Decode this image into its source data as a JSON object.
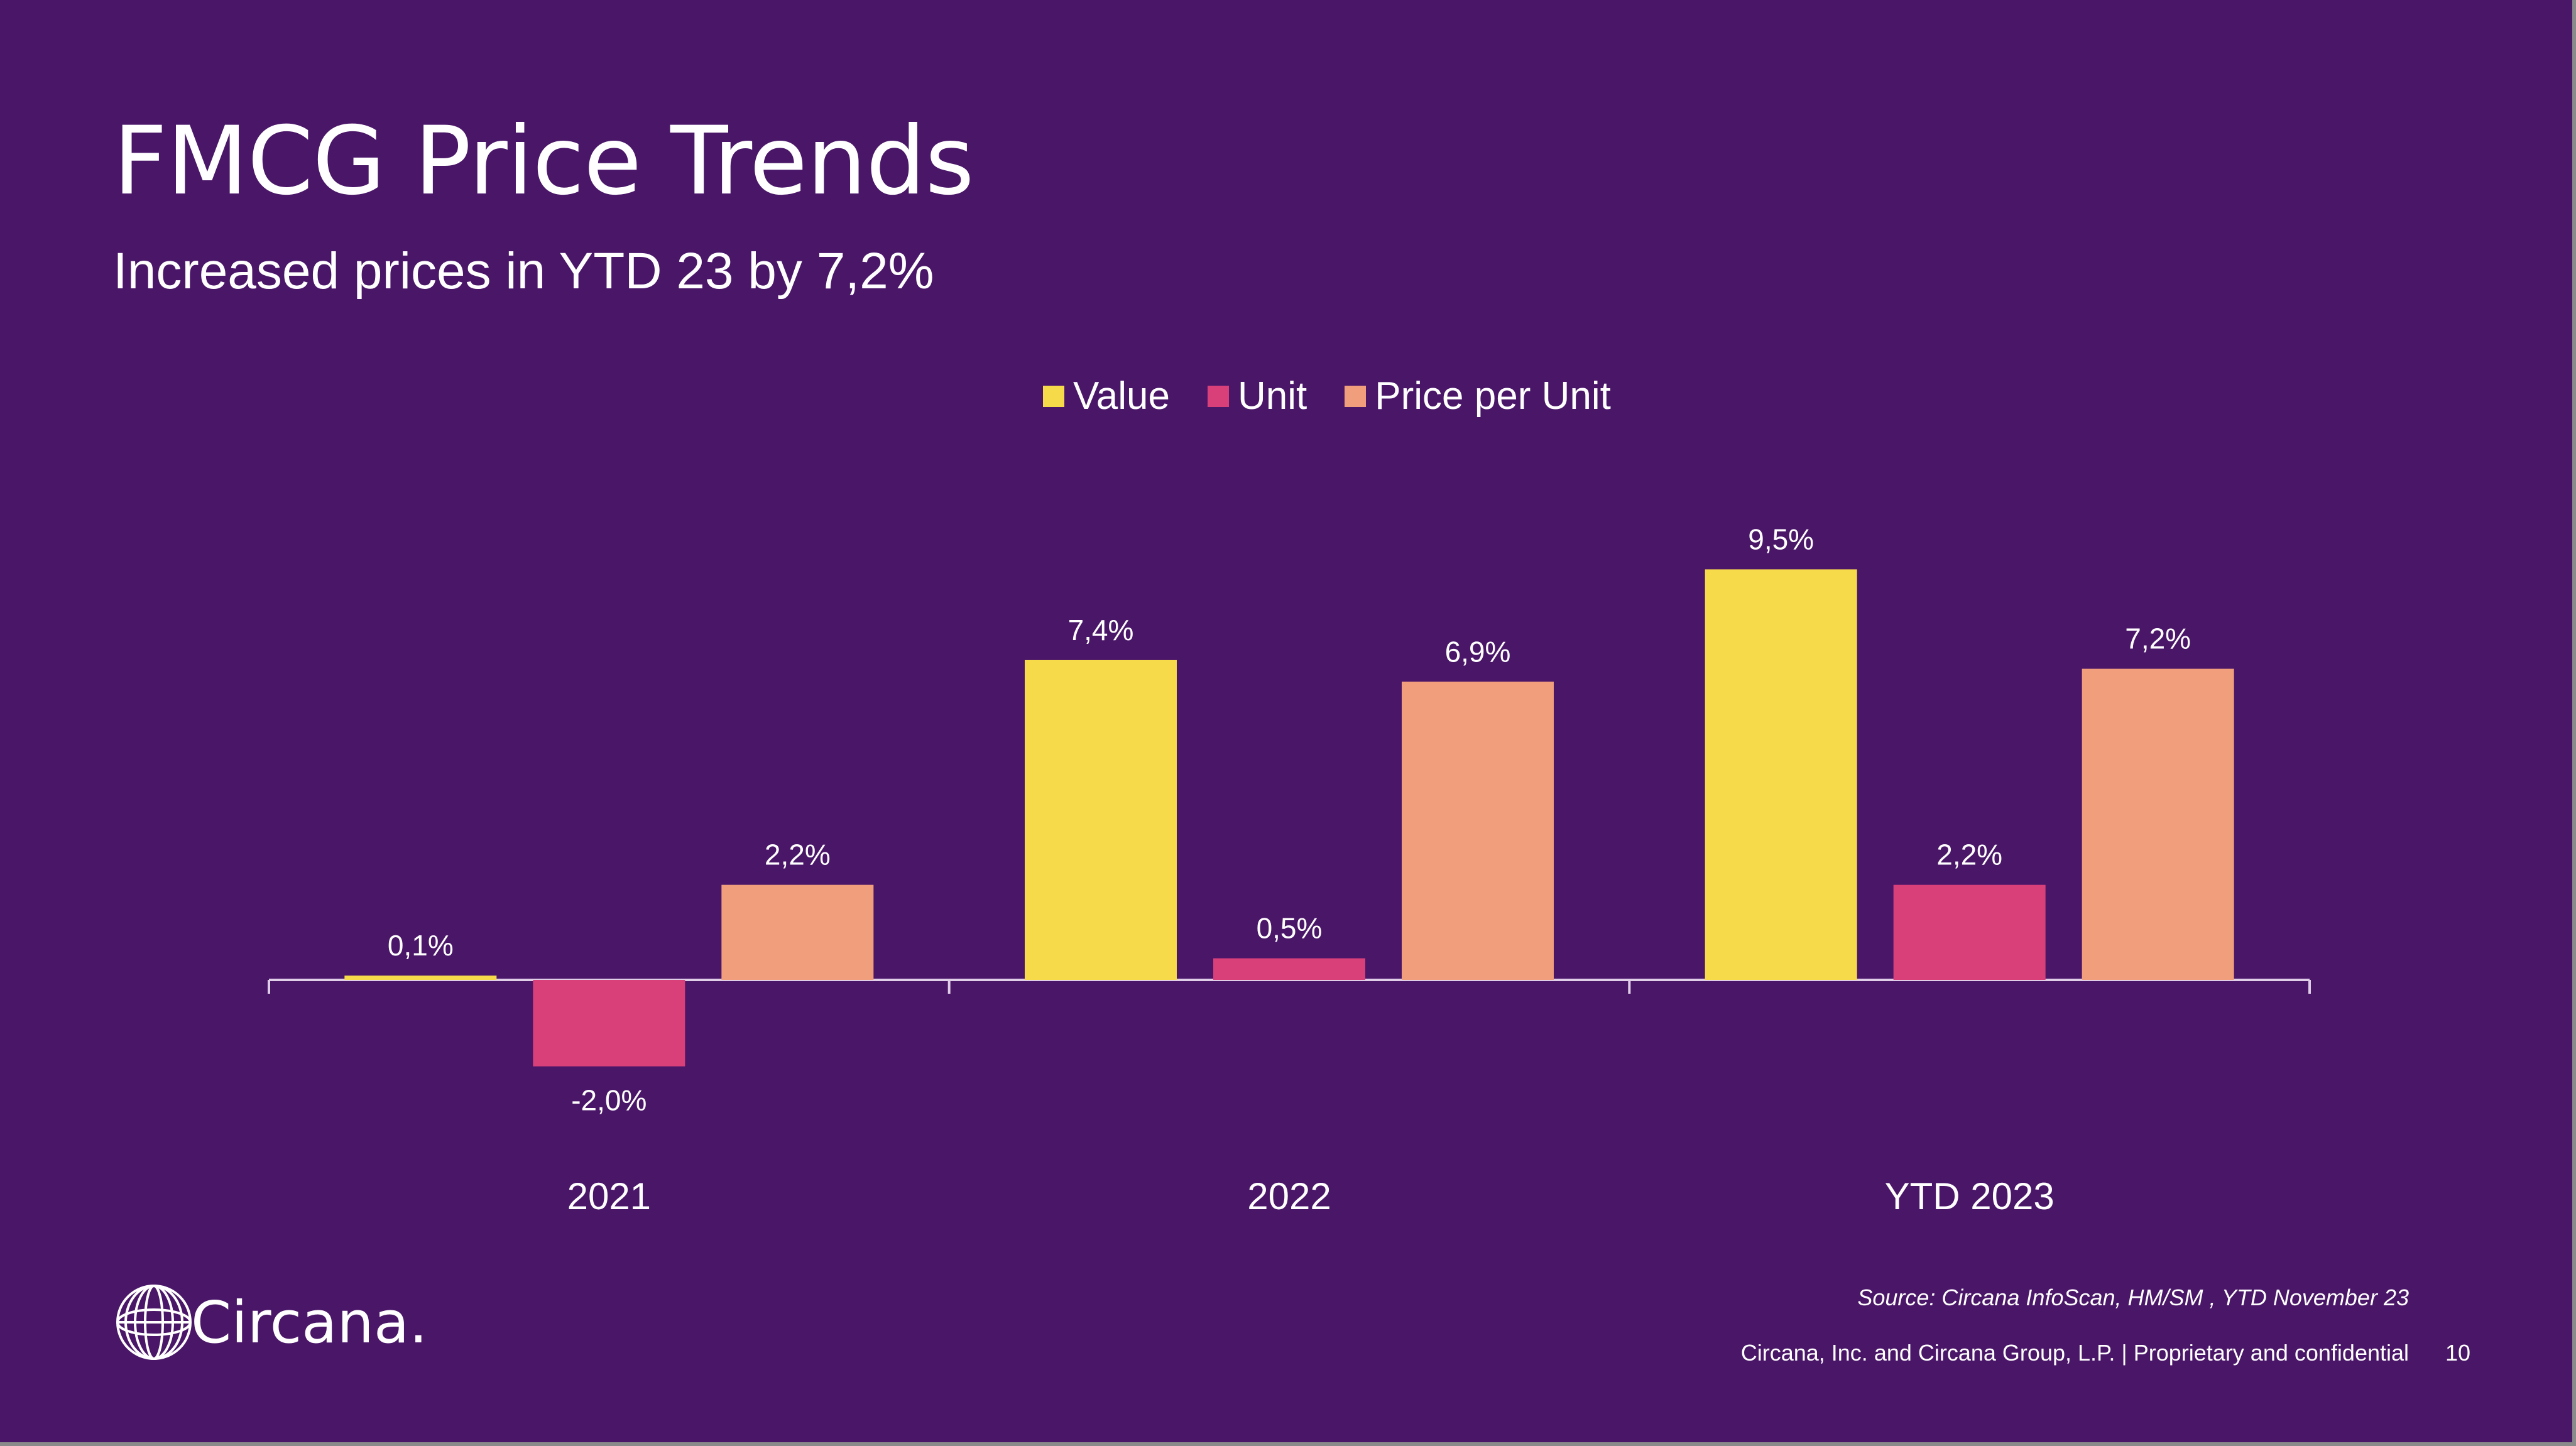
{
  "slide": {
    "title": "FMCG Price Trends",
    "subtitle": "Increased prices in YTD 23 by 7,2%",
    "source": "Source: Circana InfoScan, HM/SM , YTD November 23",
    "footer": "Circana, Inc. and Circana Group, L.P. |  Proprietary and confidential",
    "page_number": "10",
    "logo_text": "Circana.",
    "logo_icon": "globe-wireframe-icon"
  },
  "colors": {
    "background": "#4a1668",
    "value": "#f7da4a",
    "unit": "#d93f79",
    "price_per_unit": "#f09e7c",
    "text": "#ffffff",
    "axis": "#e0cde8"
  },
  "chart_data": {
    "type": "bar",
    "categories": [
      "2021",
      "2022",
      "YTD 2023"
    ],
    "series": [
      {
        "name": "Value",
        "values": [
          0.1,
          7.4,
          9.5
        ],
        "labels": [
          "0,1%",
          "7,4%",
          "9,5%"
        ]
      },
      {
        "name": "Unit",
        "values": [
          -2.0,
          0.5,
          2.2
        ],
        "labels": [
          "-2,0%",
          "0,5%",
          "2,2%"
        ]
      },
      {
        "name": "Price per Unit",
        "values": [
          2.2,
          6.9,
          7.2
        ],
        "labels": [
          "2,2%",
          "6,9%",
          "7,2%"
        ]
      }
    ],
    "legend": "top-center",
    "grid": false
  }
}
